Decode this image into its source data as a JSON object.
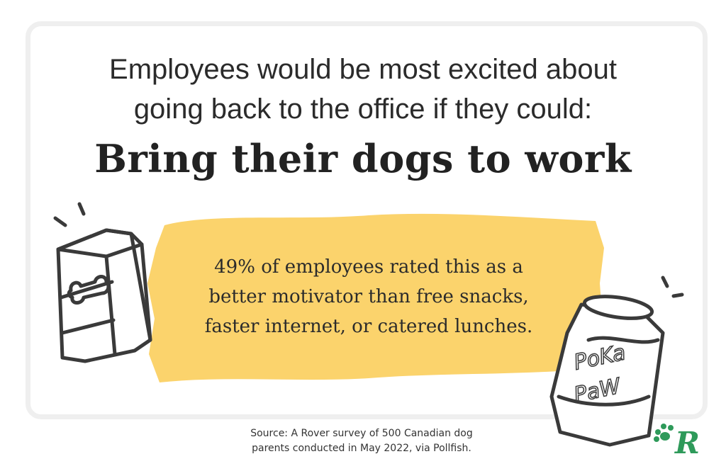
{
  "intro": {
    "lines": [
      "Employees would be most excited about",
      "going back to the office if they could:"
    ]
  },
  "headline": "Bring their dogs to work",
  "stat": {
    "lines": [
      "49% of employees rated this as a",
      "better motivator than free snacks,",
      "faster internet, or catered lunches."
    ]
  },
  "can_label": [
    "PoKa",
    "PaW"
  ],
  "source": {
    "lines": [
      "Source: A Rover survey of 500 Canadian dog",
      "parents conducted in May 2022, via Pollfish."
    ]
  },
  "logo": "R"
}
